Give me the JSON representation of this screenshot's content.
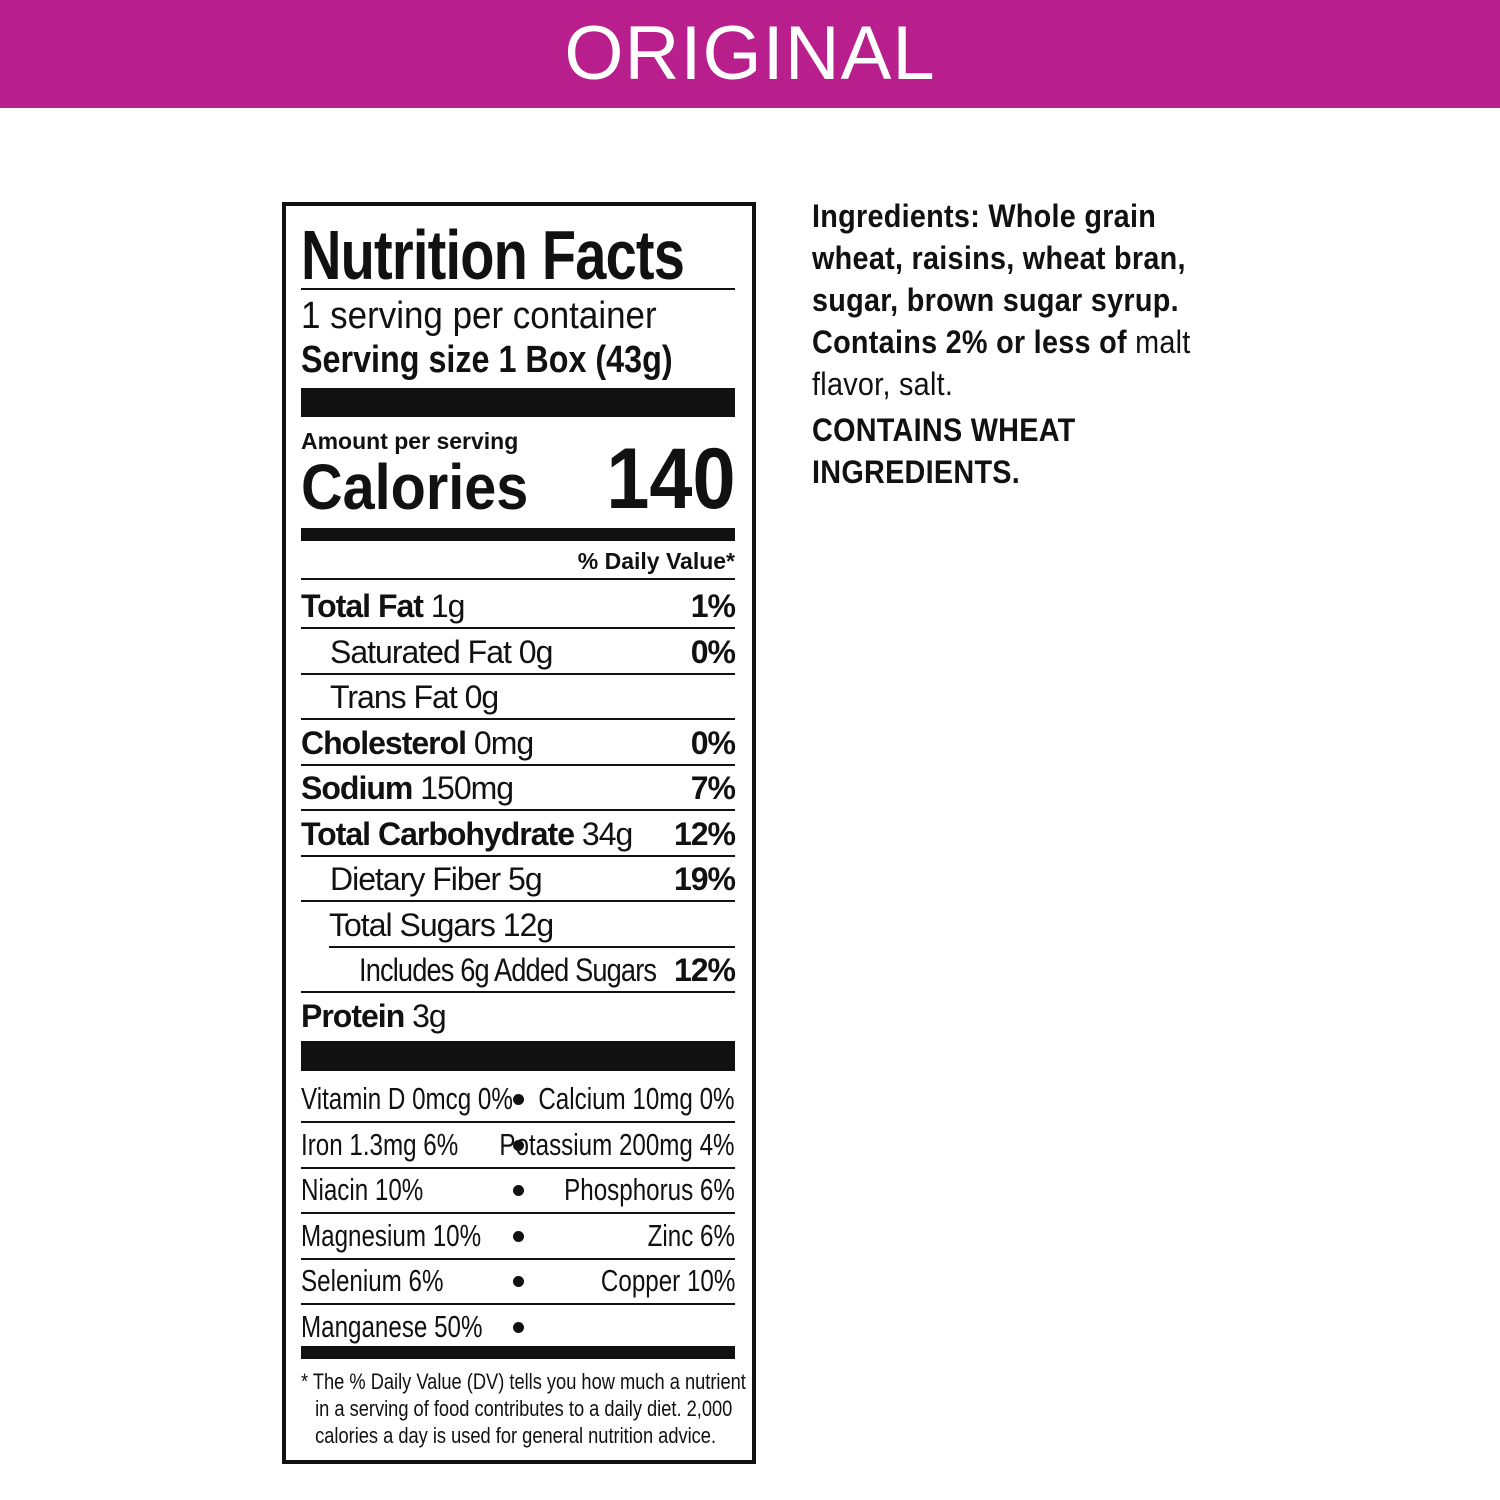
{
  "header": {
    "title": "ORIGINAL",
    "color": "#b81e8c"
  },
  "label": {
    "title": "Nutrition Facts",
    "servings": "1 serving per container",
    "serving_size": "Serving size 1 Box (43g)",
    "amount_per_serving": "Amount per serving",
    "calories_label": "Calories",
    "calories_value": "140",
    "dv_header": "% Daily Value*",
    "nutrients": [
      {
        "name": "Total Fat",
        "amount": "1g",
        "dv": "1%",
        "bold": true,
        "indent": 0
      },
      {
        "name": "Saturated Fat",
        "amount": "0g",
        "dv": "0%",
        "bold": false,
        "indent": 1
      },
      {
        "name": "Trans Fat",
        "amount": "0g",
        "dv": "",
        "bold": false,
        "indent": 1
      },
      {
        "name": "Cholesterol",
        "amount": "0mg",
        "dv": "0%",
        "bold": true,
        "indent": 0
      },
      {
        "name": "Sodium",
        "amount": "150mg",
        "dv": "7%",
        "bold": true,
        "indent": 0
      },
      {
        "name": "Total Carbohydrate",
        "amount": "34g",
        "dv": "12%",
        "bold": true,
        "indent": 0
      },
      {
        "name": "Dietary Fiber",
        "amount": "5g",
        "dv": "19%",
        "bold": false,
        "indent": 1
      },
      {
        "name": "Total Sugars",
        "amount": "12g",
        "dv": "",
        "bold": false,
        "indent": 1
      },
      {
        "name": "Includes 6g Added Sugars",
        "amount": "",
        "dv": "12%",
        "bold": false,
        "indent": 2
      },
      {
        "name": "Protein",
        "amount": "3g",
        "dv": "",
        "bold": true,
        "indent": 0
      }
    ],
    "vitamins": [
      {
        "left": "Vitamin D 0mcg 0%",
        "right": "Calcium 10mg 0%"
      },
      {
        "left": "Iron 1.3mg 6%",
        "right": "Potassium 200mg 4%"
      },
      {
        "left": "Niacin 10%",
        "right": "Phosphorus 6%"
      },
      {
        "left": "Magnesium 10%",
        "right": "Zinc 6%"
      },
      {
        "left": "Selenium 6%",
        "right": "Copper 10%"
      },
      {
        "left": "Manganese 50%",
        "right": ""
      }
    ],
    "footnote": [
      "* The % Daily Value (DV) tells you how much a nutrient",
      "in a serving of food contributes to a daily diet. 2,000",
      "calories a day is used for general nutrition advice."
    ]
  },
  "ingredients": {
    "line1": "Ingredients: Whole grain",
    "line2": "wheat, raisins, wheat bran,",
    "line3": "sugar, brown sugar syrup.",
    "line4_bold": "Contains 2% or less of",
    "line4_regular": " malt",
    "line5": "flavor, salt.",
    "allergen1": "CONTAINS WHEAT",
    "allergen2": "INGREDIENTS."
  }
}
